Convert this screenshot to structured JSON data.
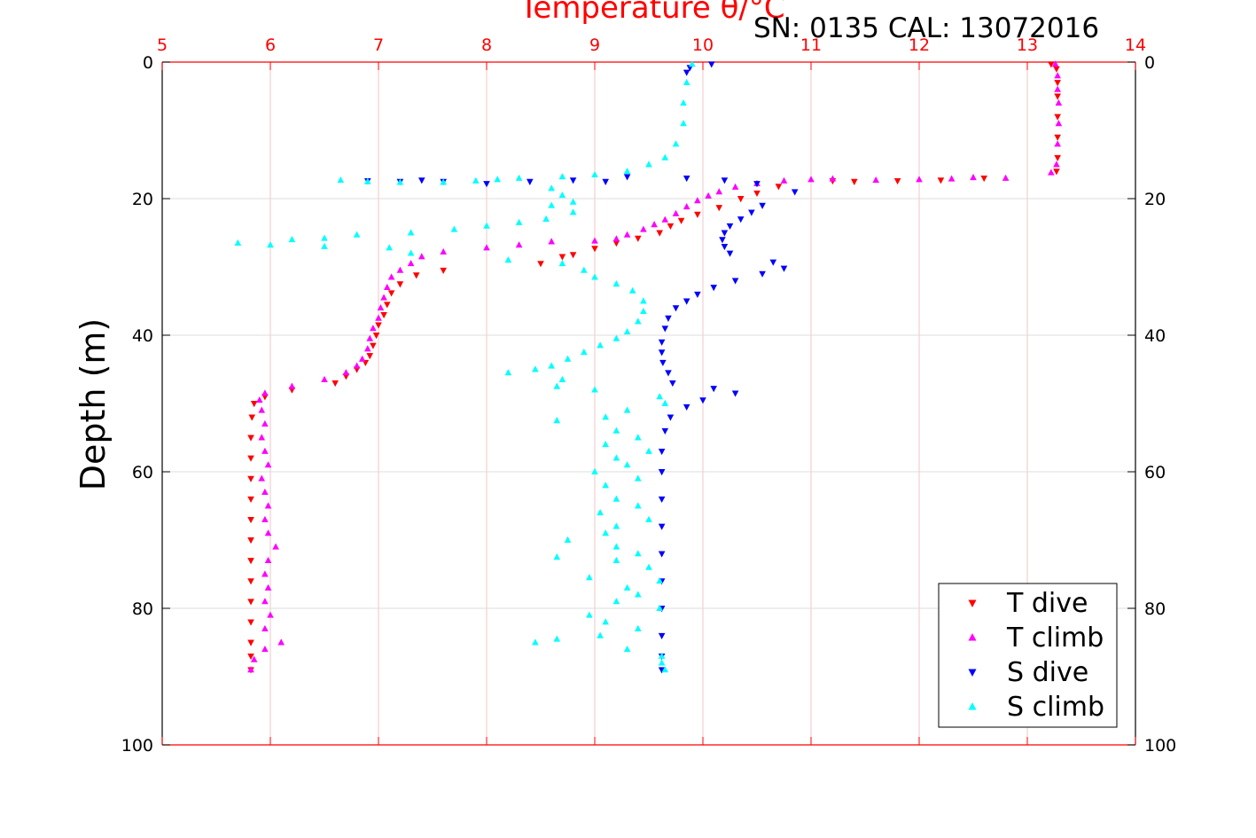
{
  "chart_data": {
    "type": "scatter",
    "title": "Temperature θ/°C",
    "annotation": "SN: 0135  CAL: 13072016",
    "xlabel": "Temperature θ/°C",
    "ylabel": "Depth (m)",
    "xlim": [
      5,
      14
    ],
    "ylim": [
      0,
      100
    ],
    "y_inverted": true,
    "xticks": [
      "5",
      "6",
      "7",
      "8",
      "9",
      "10",
      "11",
      "12",
      "13",
      "14"
    ],
    "yticks": [
      "0",
      "20",
      "40",
      "60",
      "80",
      "100"
    ],
    "grid": true,
    "x_axis_position": "top",
    "x_axis_color": "#ff0000",
    "legend_position": "bottom-right",
    "series": [
      {
        "name": "T dive",
        "color": "#ff0000",
        "marker": "triangle-down",
        "points": [
          [
            13.22,
            0.3
          ],
          [
            13.27,
            1
          ],
          [
            13.28,
            3
          ],
          [
            13.28,
            5
          ],
          [
            13.28,
            8
          ],
          [
            13.28,
            11
          ],
          [
            13.28,
            14
          ],
          [
            13.27,
            16
          ],
          [
            12.6,
            17
          ],
          [
            12.2,
            17.3
          ],
          [
            11.8,
            17.4
          ],
          [
            11.4,
            17.5
          ],
          [
            11.2,
            17.4
          ],
          [
            10.7,
            18.2
          ],
          [
            10.5,
            19.2
          ],
          [
            10.35,
            20
          ],
          [
            10.15,
            21.3
          ],
          [
            9.95,
            22.3
          ],
          [
            9.8,
            23.2
          ],
          [
            9.7,
            24
          ],
          [
            9.6,
            25
          ],
          [
            9.4,
            25.8
          ],
          [
            9.2,
            26.5
          ],
          [
            9.0,
            27.3
          ],
          [
            8.8,
            28.2
          ],
          [
            8.7,
            28.5
          ],
          [
            8.5,
            29.5
          ],
          [
            7.6,
            30.5
          ],
          [
            7.35,
            31.2
          ],
          [
            7.2,
            32.5
          ],
          [
            7.12,
            33.8
          ],
          [
            7.08,
            35.5
          ],
          [
            7.05,
            37
          ],
          [
            7.0,
            38.5
          ],
          [
            6.98,
            40
          ],
          [
            6.95,
            41.5
          ],
          [
            6.92,
            43
          ],
          [
            6.88,
            44
          ],
          [
            6.8,
            45
          ],
          [
            6.7,
            46
          ],
          [
            6.6,
            47
          ],
          [
            6.2,
            48
          ],
          [
            5.95,
            49
          ],
          [
            5.85,
            50
          ],
          [
            5.83,
            52
          ],
          [
            5.82,
            55
          ],
          [
            5.82,
            58
          ],
          [
            5.82,
            61
          ],
          [
            5.82,
            64
          ],
          [
            5.82,
            67
          ],
          [
            5.82,
            70
          ],
          [
            5.82,
            73
          ],
          [
            5.82,
            76
          ],
          [
            5.82,
            79
          ],
          [
            5.82,
            82
          ],
          [
            5.82,
            85
          ],
          [
            5.82,
            87
          ],
          [
            5.82,
            89
          ]
        ]
      },
      {
        "name": "T climb",
        "color": "#ff00ff",
        "marker": "triangle-up",
        "points": [
          [
            13.26,
            0.3
          ],
          [
            13.28,
            2
          ],
          [
            13.28,
            4
          ],
          [
            13.29,
            6
          ],
          [
            13.29,
            9
          ],
          [
            13.28,
            12
          ],
          [
            13.27,
            15
          ],
          [
            13.22,
            16.2
          ],
          [
            12.8,
            17
          ],
          [
            12.5,
            16.9
          ],
          [
            12.3,
            17.1
          ],
          [
            12.0,
            17.2
          ],
          [
            11.6,
            17.3
          ],
          [
            11.2,
            17.1
          ],
          [
            11.0,
            17.2
          ],
          [
            10.75,
            17.4
          ],
          [
            10.5,
            17.8
          ],
          [
            10.3,
            18.3
          ],
          [
            10.15,
            19
          ],
          [
            10.05,
            19.6
          ],
          [
            9.95,
            20.3
          ],
          [
            9.85,
            21.2
          ],
          [
            9.75,
            22.2
          ],
          [
            9.65,
            23.1
          ],
          [
            9.55,
            23.8
          ],
          [
            9.45,
            24.5
          ],
          [
            9.3,
            25.3
          ],
          [
            9.2,
            25.9
          ],
          [
            9.0,
            26.2
          ],
          [
            8.6,
            26.3
          ],
          [
            8.3,
            26.8
          ],
          [
            8.0,
            27.2
          ],
          [
            7.6,
            27.8
          ],
          [
            7.4,
            28.5
          ],
          [
            7.3,
            29.5
          ],
          [
            7.2,
            30.5
          ],
          [
            7.12,
            31.5
          ],
          [
            7.08,
            33
          ],
          [
            7.05,
            34.5
          ],
          [
            7.02,
            36
          ],
          [
            7.0,
            37.5
          ],
          [
            6.95,
            39
          ],
          [
            6.92,
            40.5
          ],
          [
            6.9,
            42
          ],
          [
            6.85,
            43.5
          ],
          [
            6.8,
            44.5
          ],
          [
            6.7,
            45.5
          ],
          [
            6.5,
            46.5
          ],
          [
            6.2,
            47.5
          ],
          [
            5.95,
            48.5
          ],
          [
            5.9,
            49.5
          ],
          [
            5.92,
            51
          ],
          [
            5.95,
            53
          ],
          [
            5.92,
            55
          ],
          [
            5.95,
            57
          ],
          [
            5.98,
            59
          ],
          [
            5.92,
            61
          ],
          [
            5.95,
            63
          ],
          [
            5.98,
            65
          ],
          [
            5.95,
            67
          ],
          [
            5.98,
            69
          ],
          [
            6.05,
            71
          ],
          [
            5.98,
            73
          ],
          [
            5.95,
            75
          ],
          [
            5.98,
            77
          ],
          [
            5.95,
            79
          ],
          [
            6.0,
            81
          ],
          [
            5.95,
            83
          ],
          [
            6.1,
            85
          ],
          [
            5.95,
            86
          ],
          [
            5.85,
            87.5
          ],
          [
            5.82,
            89
          ]
        ]
      },
      {
        "name": "S dive",
        "color": "#0000ff",
        "marker": "triangle-down",
        "points": [
          [
            10.08,
            0.3
          ],
          [
            9.88,
            0.8
          ],
          [
            9.85,
            1.5
          ],
          [
            9.3,
            16.8
          ],
          [
            9.85,
            17
          ],
          [
            10.2,
            17.3
          ],
          [
            10.5,
            17.8
          ],
          [
            10.85,
            19
          ],
          [
            10.55,
            21
          ],
          [
            10.45,
            22
          ],
          [
            10.35,
            23
          ],
          [
            10.25,
            24
          ],
          [
            10.2,
            25
          ],
          [
            10.18,
            26
          ],
          [
            10.2,
            27
          ],
          [
            10.25,
            28
          ],
          [
            10.65,
            29.3
          ],
          [
            10.75,
            30.2
          ],
          [
            10.55,
            31
          ],
          [
            10.3,
            32
          ],
          [
            10.1,
            33
          ],
          [
            9.95,
            34
          ],
          [
            9.85,
            35
          ],
          [
            9.75,
            36
          ],
          [
            9.68,
            37.5
          ],
          [
            9.65,
            39
          ],
          [
            9.62,
            41
          ],
          [
            9.62,
            42.5
          ],
          [
            9.63,
            44
          ],
          [
            9.68,
            45.5
          ],
          [
            9.72,
            47
          ],
          [
            10.1,
            47.8
          ],
          [
            10.3,
            48.5
          ],
          [
            10.0,
            49.5
          ],
          [
            9.85,
            50.5
          ],
          [
            9.7,
            52
          ],
          [
            9.65,
            54
          ],
          [
            9.62,
            57
          ],
          [
            9.62,
            60
          ],
          [
            9.62,
            64
          ],
          [
            9.62,
            68
          ],
          [
            9.62,
            72
          ],
          [
            9.62,
            76
          ],
          [
            9.62,
            80
          ],
          [
            9.62,
            84
          ],
          [
            9.62,
            87
          ],
          [
            9.62,
            89
          ],
          [
            7.2,
            17.5
          ],
          [
            7.4,
            17.3
          ],
          [
            7.6,
            17.5
          ],
          [
            6.9,
            17.4
          ],
          [
            8.0,
            17.8
          ],
          [
            8.4,
            17.5
          ],
          [
            8.8,
            17.3
          ],
          [
            9.1,
            17.5
          ]
        ]
      },
      {
        "name": "S climb",
        "color": "#00ffff",
        "marker": "triangle-up",
        "points": [
          [
            9.9,
            0.3
          ],
          [
            9.85,
            3
          ],
          [
            9.82,
            6
          ],
          [
            9.82,
            9
          ],
          [
            9.75,
            12
          ],
          [
            9.65,
            14
          ],
          [
            9.5,
            15
          ],
          [
            9.3,
            16
          ],
          [
            9.0,
            16.5
          ],
          [
            8.7,
            16.8
          ],
          [
            8.3,
            17
          ],
          [
            8.1,
            17.2
          ],
          [
            7.9,
            17.4
          ],
          [
            7.6,
            17.6
          ],
          [
            7.2,
            17.6
          ],
          [
            6.9,
            17.5
          ],
          [
            6.65,
            17.3
          ],
          [
            8.6,
            18.5
          ],
          [
            8.7,
            19.5
          ],
          [
            8.8,
            20.5
          ],
          [
            8.6,
            21
          ],
          [
            8.8,
            22
          ],
          [
            8.55,
            23
          ],
          [
            8.3,
            23.5
          ],
          [
            8.0,
            24
          ],
          [
            7.7,
            24.5
          ],
          [
            7.3,
            25
          ],
          [
            6.8,
            25.3
          ],
          [
            6.5,
            25.8
          ],
          [
            6.2,
            26
          ],
          [
            6.0,
            26.8
          ],
          [
            5.7,
            26.5
          ],
          [
            6.5,
            27
          ],
          [
            7.1,
            27.2
          ],
          [
            7.3,
            28
          ],
          [
            8.2,
            29
          ],
          [
            8.7,
            29.5
          ],
          [
            8.9,
            30.5
          ],
          [
            9.0,
            31.5
          ],
          [
            9.2,
            32.5
          ],
          [
            9.35,
            33.5
          ],
          [
            9.45,
            35
          ],
          [
            9.45,
            36.5
          ],
          [
            9.4,
            38
          ],
          [
            9.3,
            39.5
          ],
          [
            9.2,
            40.5
          ],
          [
            9.05,
            41.5
          ],
          [
            8.9,
            42.5
          ],
          [
            8.75,
            43.5
          ],
          [
            8.6,
            44.5
          ],
          [
            8.45,
            45
          ],
          [
            8.2,
            45.5
          ],
          [
            8.7,
            46.5
          ],
          [
            8.65,
            47.5
          ],
          [
            9.0,
            48
          ],
          [
            9.6,
            49
          ],
          [
            9.65,
            50
          ],
          [
            9.3,
            51
          ],
          [
            9.1,
            52
          ],
          [
            8.65,
            52.5
          ],
          [
            9.2,
            54
          ],
          [
            9.4,
            55
          ],
          [
            9.1,
            56
          ],
          [
            9.5,
            57
          ],
          [
            9.2,
            58
          ],
          [
            9.3,
            59
          ],
          [
            9.0,
            60
          ],
          [
            9.4,
            61
          ],
          [
            9.1,
            62
          ],
          [
            9.2,
            64
          ],
          [
            9.4,
            65
          ],
          [
            9.05,
            66
          ],
          [
            9.5,
            67
          ],
          [
            9.2,
            68
          ],
          [
            9.1,
            69
          ],
          [
            8.75,
            70
          ],
          [
            9.2,
            71
          ],
          [
            9.4,
            72
          ],
          [
            8.65,
            72.5
          ],
          [
            9.2,
            73
          ],
          [
            9.5,
            74
          ],
          [
            8.95,
            75.5
          ],
          [
            9.6,
            76
          ],
          [
            9.3,
            77
          ],
          [
            9.4,
            78
          ],
          [
            9.2,
            79
          ],
          [
            9.6,
            80
          ],
          [
            8.95,
            81
          ],
          [
            9.1,
            82
          ],
          [
            9.4,
            83
          ],
          [
            9.05,
            84
          ],
          [
            8.65,
            84.5
          ],
          [
            8.45,
            85
          ],
          [
            9.3,
            86
          ],
          [
            9.62,
            87
          ],
          [
            9.62,
            88
          ],
          [
            9.65,
            89
          ]
        ]
      }
    ]
  }
}
